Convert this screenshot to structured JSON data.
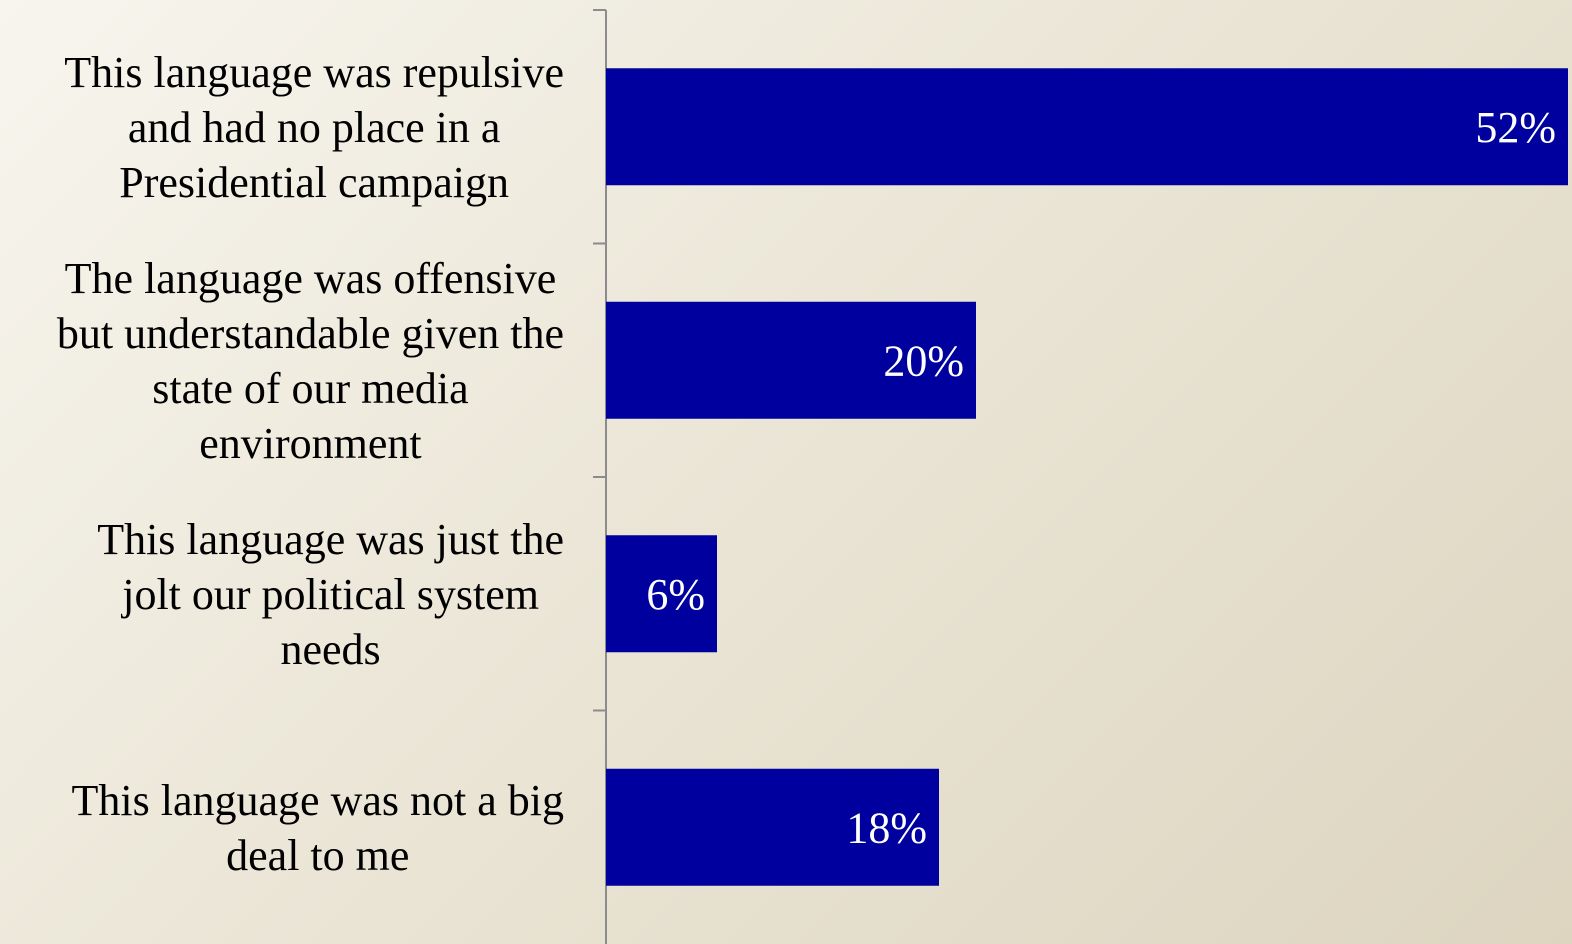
{
  "chart_data": {
    "type": "bar",
    "orientation": "horizontal",
    "categories": [
      "This language was repulsive and had no place in a Presidential campaign",
      "The language was offensive but understandable given the state of our media environment",
      "This language was just the jolt our political system needs",
      "This language was not a big deal to me"
    ],
    "category_lines": [
      [
        "This language was repulsive",
        "and had no place in a",
        "Presidential campaign"
      ],
      [
        "The language was offensive",
        "but understandable given the",
        "state of our media",
        "environment"
      ],
      [
        "This language was just the",
        "jolt our political system",
        "needs"
      ],
      [
        "This language was not a big",
        "deal to me"
      ]
    ],
    "values": [
      52,
      20,
      6,
      18
    ],
    "data_labels": [
      "52%",
      "20%",
      "6%",
      "18%"
    ],
    "xlim": [
      0,
      52
    ],
    "grid": false,
    "legend": "none",
    "bar_color": "#00009e",
    "data_label_color": "#ffffff",
    "axis_color": "#8c8c8c",
    "text_color": "#000000"
  }
}
